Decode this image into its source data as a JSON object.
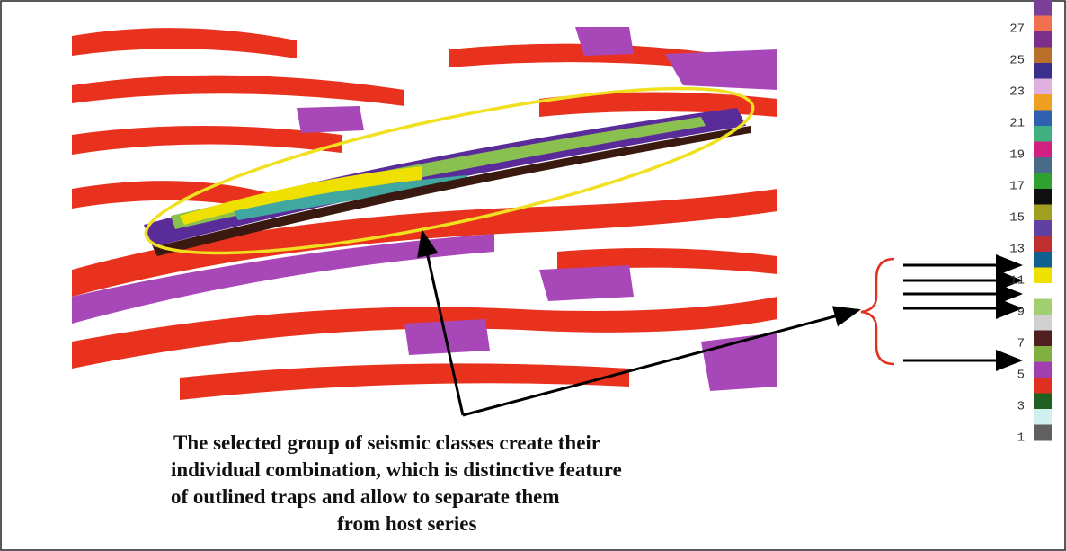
{
  "figure": {
    "colorbar": {
      "labels": [
        "27",
        "25",
        "23",
        "21",
        "19",
        "17",
        "15",
        "13",
        "11",
        "9",
        "7",
        "5",
        "3",
        "1"
      ],
      "colors": [
        "#7a3f96",
        "#f07050",
        "#7b2f8a",
        "#b8702a",
        "#3a2f8a",
        "#e0b0e0",
        "#f0a020",
        "#3060b0",
        "#40b080",
        "#d02080",
        "#4a6a8a",
        "#30a030",
        "#101010",
        "#a0a020",
        "#6040a0",
        "#c03030",
        "#106090",
        "#f0e000",
        "#ffffff",
        "#a0d070",
        "#d0d0d0",
        "#502020",
        "#80b040",
        "#a040b0",
        "#e03020",
        "#206020",
        "#d0f0f0",
        "#606060"
      ]
    },
    "caption": {
      "lines": [
        "The selected group of seismic classes create their",
        "individual combination, which is distinctive feature",
        "of outlined traps and allow to separate them",
        "from host series"
      ]
    }
  }
}
